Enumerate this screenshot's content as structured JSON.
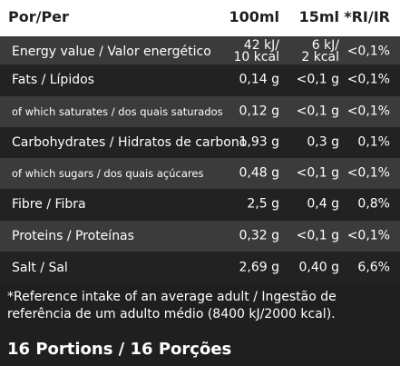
{
  "header": {
    "col0": "Por/Per",
    "col1": "100ml",
    "col2": "15ml",
    "col3": "*RI/IR"
  },
  "rows": [
    {
      "name": "Energy value / Valor energético",
      "v100": [
        "42 kJ/",
        "10 kcal"
      ],
      "v15": [
        "6 kJ/",
        "2 kcal"
      ],
      "ri": "<0,1%"
    },
    {
      "name": "Fats / Lípidos",
      "v100": "0,14 g",
      "v15": "<0,1 g",
      "ri": "<0,1%"
    },
    {
      "name": "of which saturates / dos quais saturados",
      "v100": "0,12 g",
      "v15": "<0,1 g",
      "ri": "<0,1%"
    },
    {
      "name": "Carbohydrates / Hidratos de carbono",
      "v100": "1,93 g",
      "v15": "0,3 g",
      "ri": "0,1%"
    },
    {
      "name": "of which sugars / dos quais açúcares",
      "v100": "0,48 g",
      "v15": "<0,1 g",
      "ri": "<0,1%"
    },
    {
      "name": "Fibre / Fibra",
      "v100": "2,5 g",
      "v15": "0,4 g",
      "ri": "0,8%"
    },
    {
      "name": "Proteins / Proteínas",
      "v100": "0,32 g",
      "v15": "<0,1 g",
      "ri": "<0,1%"
    },
    {
      "name": "Salt / Sal",
      "v100": "2,69 g",
      "v15": "0,40 g",
      "ri": "6,6%"
    }
  ],
  "footnote": "*Reference intake of an average adult / Ingestão de referência de um adulto médio (8400 kJ/2000 kcal).",
  "portions": "16 Portions / 16 Porções"
}
